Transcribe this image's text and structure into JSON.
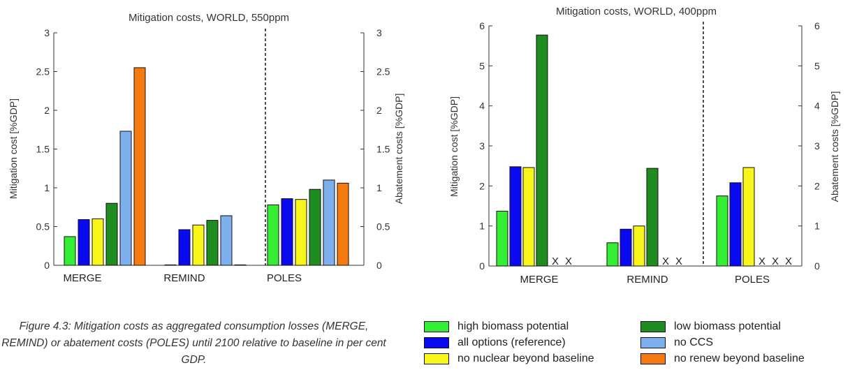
{
  "chart_data": [
    {
      "type": "bar",
      "title": "Mitigation costs, WORLD, 550ppm",
      "ylabel": "Mitigation cost [%GDP]",
      "ylabel_right": "Abatement costs [%GDP]",
      "ylim": [
        0,
        3
      ],
      "ylim_right": [
        0,
        3
      ],
      "yticks": [
        "0",
        "0.5",
        "1",
        "1.5",
        "2",
        "2.5",
        "3"
      ],
      "yticks_right": [
        "0",
        "0.5",
        "1",
        "1.5",
        "2",
        "2.5",
        "3"
      ],
      "categories": [
        "MERGE",
        "REMIND",
        "POLES"
      ],
      "series_order": [
        "high_biomass",
        "all_options",
        "no_nuclear",
        "low_biomass",
        "no_ccs",
        "no_renew"
      ],
      "values": {
        "MERGE": [
          0.37,
          0.59,
          0.6,
          0.8,
          1.73,
          2.55
        ],
        "REMIND": [
          0.0,
          0.46,
          0.52,
          0.58,
          0.64,
          0.0
        ],
        "POLES": [
          0.78,
          0.86,
          0.85,
          0.98,
          1.1,
          1.06
        ]
      },
      "not_available_marker": "X",
      "not_available": {
        "MERGE": [],
        "REMIND": [],
        "POLES": []
      }
    },
    {
      "type": "bar",
      "title": "Mitigation costs, WORLD, 400ppm",
      "ylabel": "Mitigation cost [%GDP]",
      "ylabel_right": "Abatement costs [%GDP]",
      "ylim": [
        0,
        6
      ],
      "ylim_right": [
        0,
        6
      ],
      "yticks": [
        "0",
        "1",
        "2",
        "3",
        "4",
        "5",
        "6"
      ],
      "yticks_right": [
        "0",
        "1",
        "2",
        "3",
        "4",
        "5",
        "6"
      ],
      "categories": [
        "MERGE",
        "REMIND",
        "POLES"
      ],
      "series_order": [
        "high_biomass",
        "all_options",
        "no_nuclear",
        "low_biomass",
        "no_ccs",
        "no_renew"
      ],
      "values": {
        "MERGE": [
          1.37,
          2.48,
          2.46,
          5.77,
          null,
          null
        ],
        "REMIND": [
          0.58,
          0.92,
          1.0,
          2.44,
          null,
          null
        ],
        "POLES": [
          1.75,
          2.08,
          2.46,
          null,
          null,
          null
        ]
      },
      "not_available_marker": "X",
      "not_available": {
        "MERGE": [
          4,
          5
        ],
        "REMIND": [
          4,
          5
        ],
        "POLES": [
          3,
          4,
          5
        ]
      }
    }
  ],
  "series": [
    {
      "key": "high_biomass",
      "name": "high biomass potential",
      "color": "#33ee33"
    },
    {
      "key": "all_options",
      "name": "all options (reference)",
      "color": "#0a0af0"
    },
    {
      "key": "no_nuclear",
      "name": "no nuclear beyond baseline",
      "color": "#f7f51a"
    },
    {
      "key": "low_biomass",
      "name": "low biomass potential",
      "color": "#1f8c1f"
    },
    {
      "key": "no_ccs",
      "name": "no CCS",
      "color": "#7fb0ee"
    },
    {
      "key": "no_renew",
      "name": "no renew beyond baseline",
      "color": "#f57a10"
    }
  ],
  "caption": "Figure 4.3: Mitigation costs as aggregated consumption losses (MERGE, REMIND) or abatement costs (POLES) until 2100 relative to baseline in per cent GDP."
}
